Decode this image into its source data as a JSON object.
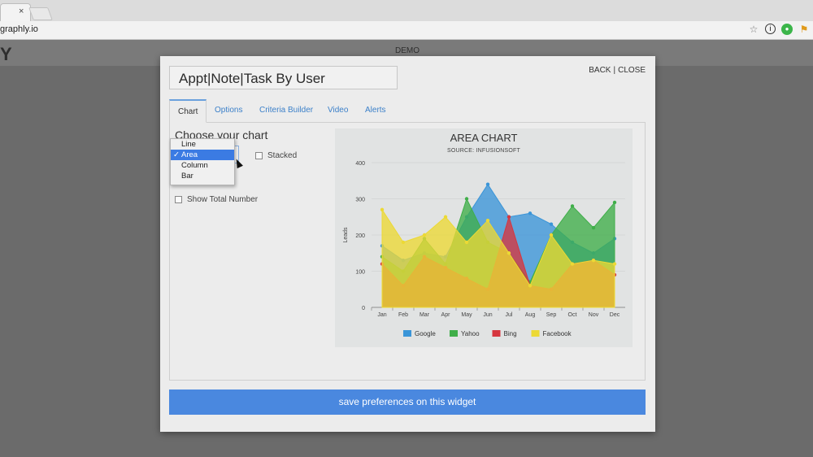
{
  "browser": {
    "tab_close": "×",
    "url": "graphly.io"
  },
  "backdrop": {
    "logo": "Y",
    "demo": "DEMO"
  },
  "modal": {
    "title": "Appt|Note|Task By User",
    "back": "BACK",
    "separator": "|",
    "close": "CLOSE",
    "tabs": [
      "Chart",
      "Options",
      "Criteria Builder",
      "Video",
      "Alerts"
    ],
    "choose_label": "Choose your chart",
    "stacked_label": "Stacked",
    "show_total_label": "Show Total Number",
    "save_button": "save preferences on this widget"
  },
  "dropdown": {
    "options": [
      "Line",
      "Area",
      "Column",
      "Bar"
    ],
    "selected": "Area",
    "check": "✓"
  },
  "colors": {
    "Google": "#3a95d8",
    "Yahoo": "#3fae49",
    "Bing": "#d6363f",
    "Facebook": "#ecd935"
  },
  "chart_data": {
    "type": "area",
    "title": "AREA CHART",
    "subtitle": "SOURCE: INFUSIONSOFT",
    "ylabel": "Leads",
    "ylim": [
      0,
      400
    ],
    "yticks": [
      0,
      100,
      200,
      300,
      400
    ],
    "categories": [
      "Jan",
      "Feb",
      "Mar",
      "Apr",
      "May",
      "Jun",
      "Jul",
      "Aug",
      "Sep",
      "Oct",
      "Nov",
      "Dec"
    ],
    "legend_position": "bottom",
    "series": [
      {
        "name": "Google",
        "values": [
          170,
          130,
          150,
          140,
          250,
          340,
          250,
          260,
          230,
          180,
          150,
          190
        ]
      },
      {
        "name": "Yahoo",
        "values": [
          140,
          100,
          190,
          120,
          300,
          180,
          150,
          70,
          200,
          280,
          220,
          290
        ]
      },
      {
        "name": "Bing",
        "values": [
          120,
          60,
          140,
          110,
          80,
          50,
          250,
          60,
          50,
          120,
          130,
          90
        ]
      },
      {
        "name": "Facebook",
        "values": [
          270,
          180,
          200,
          250,
          180,
          240,
          150,
          60,
          200,
          120,
          130,
          120
        ]
      }
    ]
  }
}
